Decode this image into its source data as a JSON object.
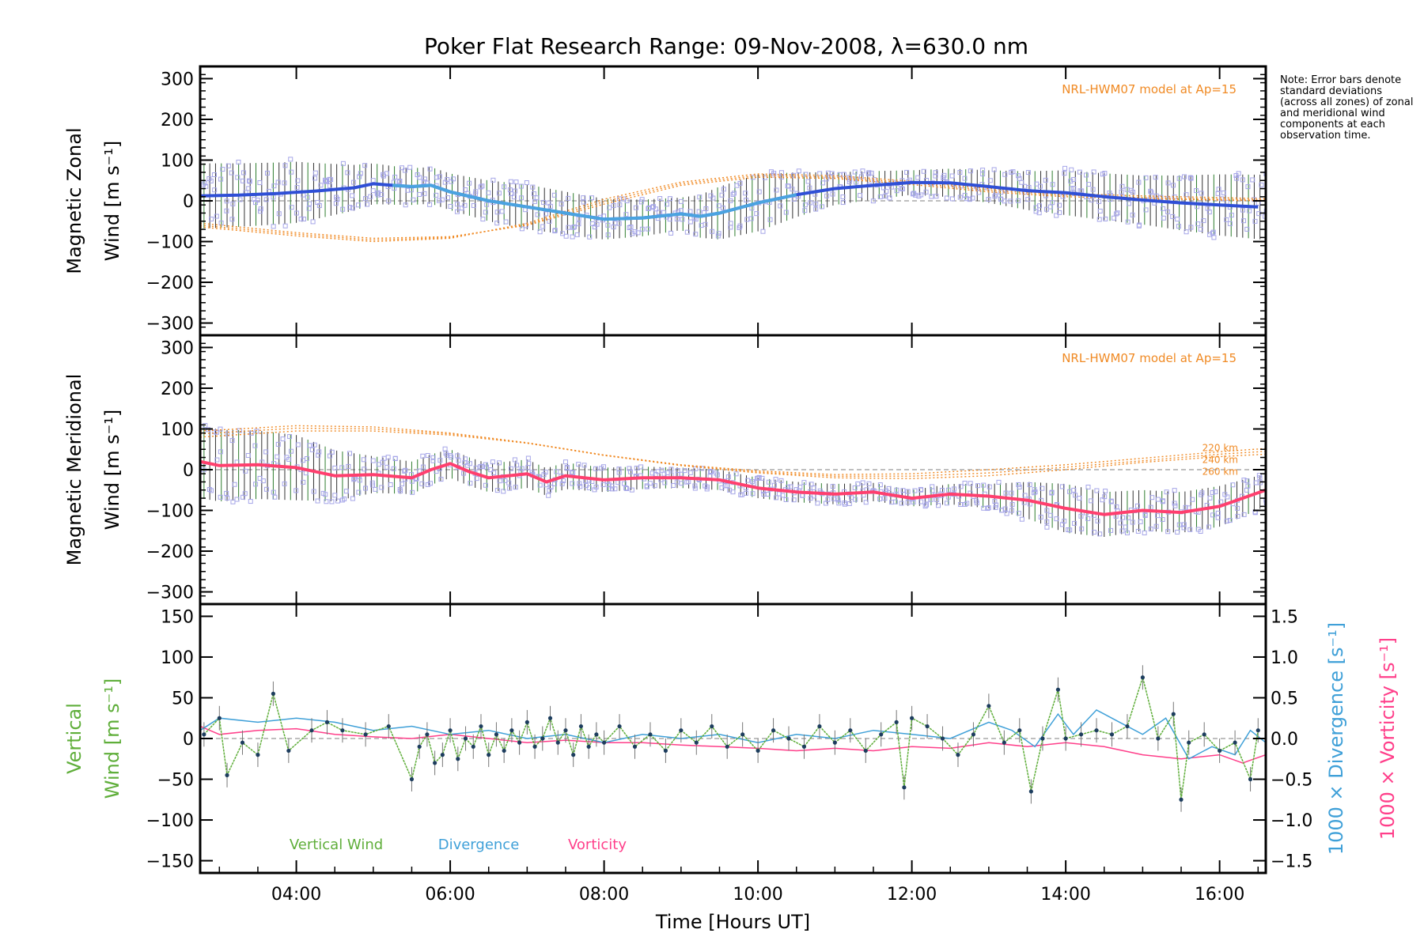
{
  "title": "Poker Flat Research Range: 09-Nov-2008, λ=630.0 nm",
  "note": "Note: Error bars denote standard deviations (across all zones) of zonal and meridional wind components at each observation time.",
  "colors": {
    "zonal_mean": "#2f4fd6",
    "zonal_mean_light": "#4aa3e0",
    "meridional_mean": "#ff3f6e",
    "model": "#f08a24",
    "scatter": "#a6a6e8",
    "vertical": "#5fae3a",
    "divergence": "#3fa0d8",
    "vorticity": "#ff3f8a",
    "errorbar_green": "#2e7d2e",
    "zero_line": "#999999"
  },
  "chart_data": [
    {
      "type": "line",
      "name": "zonal",
      "ylabel_lines": [
        "Magnetic Zonal",
        "Wind [m s⁻¹]"
      ],
      "ylim": [
        -330,
        330
      ],
      "yticks": [
        -300,
        -200,
        -100,
        0,
        100,
        200,
        300
      ],
      "xlim": [
        2.75,
        16.6
      ],
      "model_label": "NRL-HWM07 model at Ap=15",
      "model_height_labels": [],
      "mean": {
        "x": [
          2.75,
          3.25,
          3.75,
          4.25,
          4.75,
          5.0,
          5.25,
          5.5,
          5.75,
          6.0,
          6.5,
          7.0,
          7.5,
          8.0,
          8.5,
          9.0,
          9.25,
          9.5,
          10.0,
          10.5,
          11.0,
          11.5,
          12.0,
          12.5,
          13.0,
          13.5,
          14.0,
          14.5,
          15.0,
          15.5,
          16.0,
          16.5
        ],
        "y": [
          12,
          14,
          18,
          24,
          32,
          42,
          38,
          35,
          38,
          22,
          0,
          -15,
          -30,
          -45,
          -42,
          -32,
          -38,
          -30,
          -5,
          15,
          30,
          38,
          45,
          44,
          35,
          25,
          20,
          10,
          2,
          -5,
          -10,
          -15
        ]
      },
      "model_curves": [
        {
          "x": [
            2.75,
            4,
            5,
            6,
            7,
            8,
            9,
            10,
            11,
            12,
            13,
            14,
            15,
            16,
            16.6
          ],
          "y": [
            -55,
            -78,
            -92,
            -88,
            -60,
            -8,
            38,
            58,
            55,
            40,
            22,
            10,
            5,
            2,
            0
          ]
        },
        {
          "x": [
            2.75,
            4,
            5,
            6,
            7,
            8,
            9,
            10,
            11,
            12,
            13,
            14,
            15,
            16,
            16.6
          ],
          "y": [
            -60,
            -82,
            -96,
            -90,
            -58,
            -2,
            42,
            62,
            58,
            44,
            26,
            14,
            8,
            4,
            2
          ]
        },
        {
          "x": [
            2.75,
            4,
            5,
            6,
            7,
            8,
            9,
            10,
            11,
            12,
            13,
            14,
            15,
            16,
            16.6
          ],
          "y": [
            -64,
            -86,
            -100,
            -92,
            -55,
            4,
            46,
            66,
            62,
            48,
            30,
            18,
            12,
            8,
            5
          ]
        }
      ],
      "error_sigma": {
        "x": [
          2.75,
          4,
          5,
          5.5,
          6,
          7,
          8,
          9,
          9.5,
          10,
          11,
          12,
          13,
          14,
          15,
          16,
          16.6
        ],
        "y": [
          80,
          75,
          50,
          45,
          45,
          55,
          50,
          40,
          65,
          70,
          40,
          30,
          40,
          55,
          60,
          75,
          80
        ]
      }
    },
    {
      "type": "line",
      "name": "meridional",
      "ylabel_lines": [
        "Magnetic Meridional",
        "Wind [m s⁻¹]"
      ],
      "ylim": [
        -330,
        330
      ],
      "yticks": [
        -300,
        -200,
        -100,
        0,
        100,
        200,
        300
      ],
      "xlim": [
        2.75,
        16.6
      ],
      "model_label": "NRL-HWM07 model at Ap=15",
      "model_height_labels": [
        "220 km",
        "240 km",
        "260 km"
      ],
      "mean": {
        "x": [
          2.75,
          3.0,
          3.5,
          4.0,
          4.5,
          5.0,
          5.5,
          5.75,
          6.0,
          6.25,
          6.5,
          7.0,
          7.25,
          7.5,
          8.0,
          8.5,
          9.0,
          9.5,
          10.0,
          10.5,
          11.0,
          11.5,
          12.0,
          12.5,
          13.0,
          13.5,
          14.0,
          14.5,
          15.0,
          15.5,
          16.0,
          16.6
        ],
        "y": [
          20,
          10,
          12,
          5,
          -15,
          -12,
          -20,
          0,
          15,
          -5,
          -20,
          -10,
          -30,
          -15,
          -25,
          -20,
          -20,
          -25,
          -45,
          -55,
          -60,
          -55,
          -70,
          -60,
          -65,
          -75,
          -95,
          -110,
          -100,
          -105,
          -90,
          -50
        ]
      },
      "model_curves": [
        {
          "x": [
            2.75,
            4,
            5,
            6,
            7,
            8,
            9,
            10,
            11,
            12,
            13,
            14,
            15,
            16,
            16.6
          ],
          "y": [
            80,
            95,
            95,
            85,
            65,
            35,
            10,
            -8,
            -20,
            -22,
            -15,
            0,
            18,
            32,
            38
          ]
        },
        {
          "x": [
            2.75,
            4,
            5,
            6,
            7,
            8,
            9,
            10,
            11,
            12,
            13,
            14,
            15,
            16,
            16.6
          ],
          "y": [
            88,
            102,
            100,
            88,
            66,
            36,
            11,
            -6,
            -16,
            -16,
            -8,
            6,
            22,
            38,
            45
          ]
        },
        {
          "x": [
            2.75,
            4,
            5,
            6,
            7,
            8,
            9,
            10,
            11,
            12,
            13,
            14,
            15,
            16,
            16.6
          ],
          "y": [
            95,
            108,
            105,
            90,
            66,
            36,
            12,
            -3,
            -12,
            -10,
            0,
            12,
            28,
            44,
            52
          ]
        }
      ],
      "error_sigma": {
        "x": [
          2.75,
          4,
          5,
          5.5,
          6,
          7,
          8,
          9,
          10,
          11,
          12,
          13,
          14,
          15,
          16,
          16.6
        ],
        "y": [
          90,
          80,
          45,
          40,
          35,
          35,
          30,
          25,
          25,
          25,
          20,
          30,
          60,
          50,
          50,
          40
        ]
      }
    },
    {
      "type": "line",
      "name": "vertical",
      "ylabel_left_lines": [
        "Vertical",
        "Wind [m s⁻¹]"
      ],
      "ylabel_right_1": "1000 × Divergence [s⁻¹]",
      "ylabel_right_2": "1000 × Vorticity [s⁻¹]",
      "ylim": [
        -165,
        165
      ],
      "yticks": [
        -150,
        -100,
        -50,
        0,
        50,
        100,
        150
      ],
      "y2lim": [
        -1.65,
        1.65
      ],
      "y2ticks": [
        -1.5,
        -1.0,
        -0.5,
        0.0,
        0.5,
        1.0,
        1.5
      ],
      "xlim": [
        2.75,
        16.6
      ],
      "xticks": [
        4,
        6,
        8,
        10,
        12,
        14,
        16
      ],
      "xtick_labels": [
        "04:00",
        "06:00",
        "08:00",
        "10:00",
        "12:00",
        "14:00",
        "16:00"
      ],
      "xlabel": "Time [Hours UT]",
      "legend": [
        "Vertical Wind",
        "Divergence",
        "Vorticity"
      ],
      "vertical_wind": {
        "x": [
          2.8,
          3.0,
          3.1,
          3.3,
          3.5,
          3.7,
          3.9,
          4.2,
          4.4,
          4.6,
          4.9,
          5.2,
          5.5,
          5.6,
          5.7,
          5.8,
          5.9,
          6.0,
          6.1,
          6.2,
          6.3,
          6.4,
          6.5,
          6.6,
          6.7,
          6.8,
          6.9,
          7.0,
          7.1,
          7.2,
          7.3,
          7.4,
          7.5,
          7.6,
          7.7,
          7.8,
          7.9,
          8.0,
          8.2,
          8.4,
          8.6,
          8.8,
          9.0,
          9.2,
          9.4,
          9.6,
          9.8,
          10.0,
          10.2,
          10.4,
          10.6,
          10.8,
          11.0,
          11.2,
          11.4,
          11.6,
          11.8,
          11.9,
          12.0,
          12.2,
          12.4,
          12.6,
          12.8,
          13.0,
          13.2,
          13.4,
          13.55,
          13.7,
          13.9,
          14.0,
          14.2,
          14.4,
          14.6,
          14.8,
          15.0,
          15.2,
          15.4,
          15.5,
          15.6,
          15.8,
          16.0,
          16.2,
          16.4,
          16.5
        ],
        "y": [
          5,
          25,
          -45,
          -5,
          -20,
          55,
          -15,
          10,
          20,
          10,
          5,
          15,
          -50,
          -10,
          5,
          -30,
          -20,
          10,
          -25,
          0,
          -10,
          15,
          -20,
          5,
          -15,
          10,
          -5,
          20,
          -10,
          0,
          25,
          -5,
          10,
          -20,
          15,
          -10,
          5,
          -5,
          15,
          -10,
          5,
          -15,
          10,
          -5,
          15,
          -10,
          5,
          -15,
          10,
          0,
          -10,
          15,
          -5,
          10,
          -15,
          5,
          20,
          -60,
          25,
          15,
          0,
          -20,
          5,
          40,
          -5,
          10,
          -65,
          0,
          60,
          0,
          5,
          10,
          5,
          15,
          75,
          0,
          30,
          -75,
          -5,
          5,
          -15,
          -5,
          -50,
          10
        ],
        "error": 15
      },
      "divergence": {
        "x": [
          2.75,
          3.0,
          3.5,
          4.0,
          4.5,
          5.0,
          5.5,
          6.0,
          6.5,
          7.0,
          7.5,
          8.0,
          8.5,
          9.0,
          9.5,
          10.0,
          10.5,
          11.0,
          11.5,
          12.0,
          12.5,
          13.0,
          13.3,
          13.6,
          13.9,
          14.1,
          14.4,
          14.7,
          15.0,
          15.3,
          15.6,
          15.9,
          16.2,
          16.4,
          16.6
        ],
        "y": [
          0.1,
          0.25,
          0.2,
          0.25,
          0.2,
          0.1,
          0.15,
          0.05,
          0.1,
          0.0,
          0.05,
          -0.05,
          0.05,
          0.0,
          0.05,
          -0.05,
          0.05,
          0.0,
          0.1,
          0.05,
          0.0,
          0.2,
          0.1,
          -0.1,
          0.3,
          0.05,
          0.35,
          0.2,
          0.05,
          0.25,
          -0.25,
          -0.1,
          -0.2,
          0.1,
          -0.05
        ]
      },
      "vorticity": {
        "x": [
          2.75,
          3.0,
          3.5,
          4.0,
          4.5,
          5.0,
          5.5,
          6.0,
          6.5,
          7.0,
          7.5,
          8.0,
          8.5,
          9.0,
          9.5,
          10.0,
          10.5,
          11.0,
          11.5,
          12.0,
          12.5,
          13.0,
          13.5,
          14.0,
          14.5,
          15.0,
          15.5,
          16.0,
          16.3,
          16.6
        ],
        "y": [
          0.15,
          0.05,
          0.1,
          0.12,
          0.05,
          0.02,
          0.0,
          0.05,
          0.0,
          -0.05,
          -0.02,
          -0.05,
          -0.05,
          -0.08,
          -0.1,
          -0.12,
          -0.15,
          -0.12,
          -0.15,
          -0.1,
          -0.12,
          -0.05,
          -0.1,
          -0.05,
          -0.1,
          -0.2,
          -0.25,
          -0.2,
          -0.3,
          -0.2
        ]
      }
    }
  ]
}
